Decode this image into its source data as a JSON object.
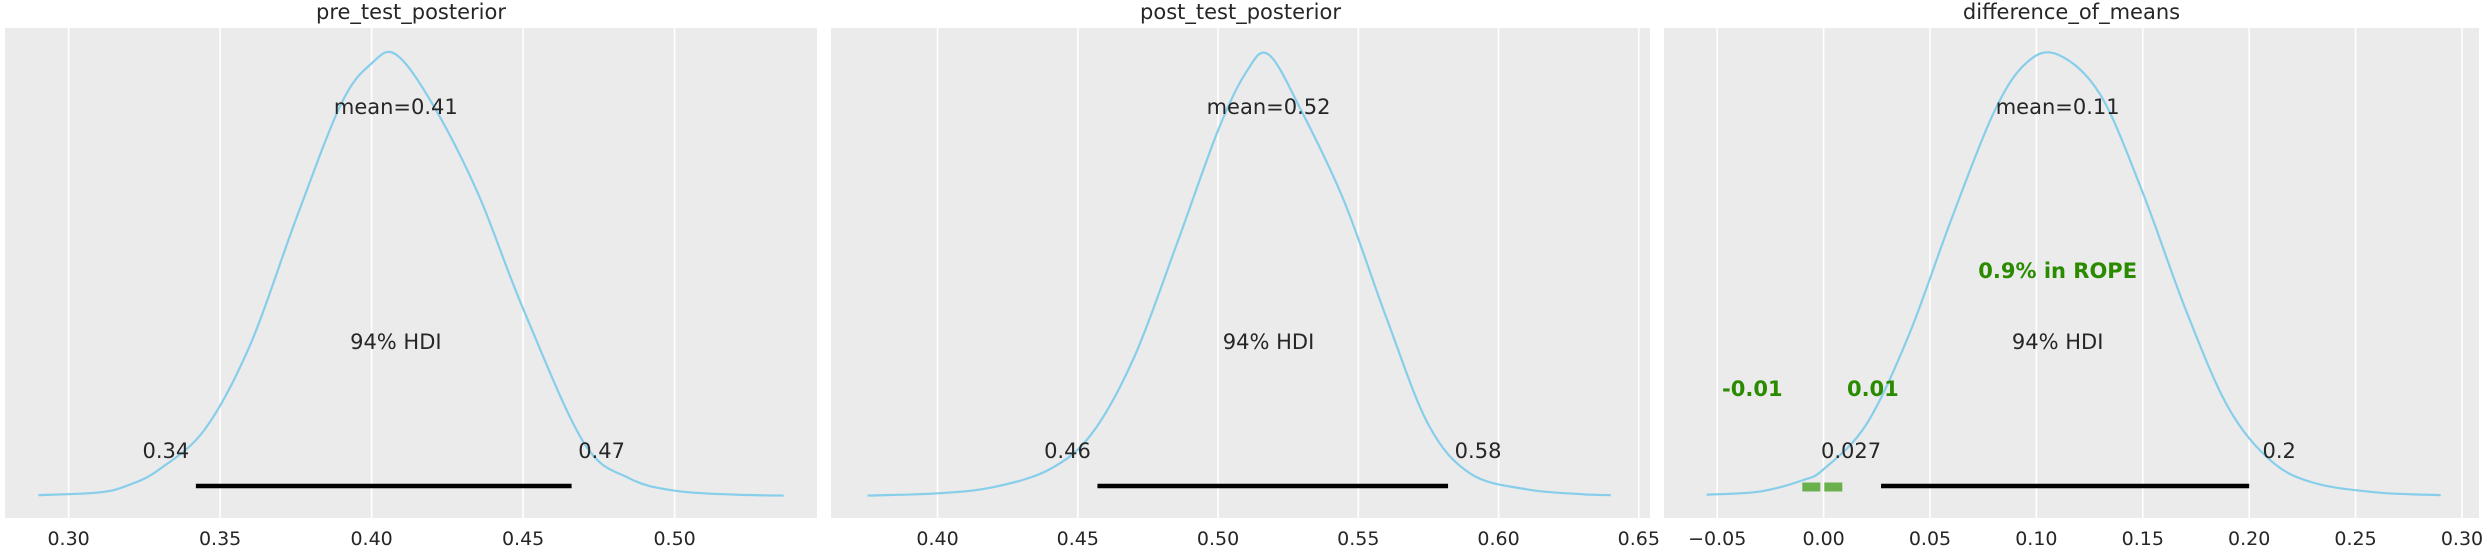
{
  "chart_data": [
    {
      "type": "area",
      "title": "pre_test_posterior",
      "xlabel": "",
      "ylabel": "",
      "xlim": [
        0.279,
        0.547
      ],
      "xticks": [
        0.3,
        0.35,
        0.4,
        0.45,
        0.5
      ],
      "xtick_labels": [
        "0.30",
        "0.35",
        "0.40",
        "0.45",
        "0.50"
      ],
      "grid": "vertical",
      "line_color": "#87ceeb",
      "mean_label": "mean=0.41",
      "hdi_label": "94% HDI",
      "hdi": [
        0.342,
        0.466
      ],
      "hdi_labels": [
        "0.34",
        "0.47"
      ],
      "density": {
        "x": [
          0.29,
          0.31,
          0.32,
          0.33,
          0.345,
          0.36,
          0.375,
          0.39,
          0.4,
          0.408,
          0.42,
          0.435,
          0.45,
          0.47,
          0.485,
          0.5,
          0.52,
          0.536
        ],
        "y": [
          0.002,
          0.008,
          0.025,
          0.06,
          0.15,
          0.34,
          0.62,
          0.88,
          0.97,
          0.99,
          0.88,
          0.68,
          0.42,
          0.12,
          0.04,
          0.012,
          0.003,
          0.001
        ]
      }
    },
    {
      "type": "area",
      "title": "post_test_posterior",
      "xlabel": "",
      "ylabel": "",
      "xlim": [
        0.362,
        0.654
      ],
      "xticks": [
        0.4,
        0.45,
        0.5,
        0.55,
        0.6,
        0.65
      ],
      "xtick_labels": [
        "0.40",
        "0.45",
        "0.50",
        "0.55",
        "0.60",
        "0.65"
      ],
      "grid": "vertical",
      "line_color": "#87ceeb",
      "mean_label": "mean=0.52",
      "hdi_label": "94% HDI",
      "hdi": [
        0.457,
        0.582
      ],
      "hdi_labels": [
        "0.46",
        "0.58"
      ],
      "density": {
        "x": [
          0.375,
          0.4,
          0.42,
          0.44,
          0.455,
          0.47,
          0.485,
          0.5,
          0.51,
          0.518,
          0.53,
          0.545,
          0.56,
          0.575,
          0.59,
          0.61,
          0.63,
          0.64
        ],
        "y": [
          0.001,
          0.006,
          0.02,
          0.06,
          0.14,
          0.31,
          0.56,
          0.82,
          0.95,
          0.99,
          0.86,
          0.66,
          0.4,
          0.16,
          0.05,
          0.015,
          0.004,
          0.002
        ]
      }
    },
    {
      "type": "area",
      "title": "difference_of_means",
      "xlabel": "",
      "ylabel": "",
      "xlim": [
        -0.075,
        0.308
      ],
      "xticks": [
        -0.05,
        0.0,
        0.05,
        0.1,
        0.15,
        0.2,
        0.25,
        0.3
      ],
      "xtick_labels": [
        "−0.05",
        "0.00",
        "0.05",
        "0.10",
        "0.15",
        "0.20",
        "0.25",
        "0.30"
      ],
      "grid": "vertical",
      "line_color": "#87ceeb",
      "mean_label": "mean=0.11",
      "hdi_label": "94% HDI",
      "hdi": [
        0.027,
        0.2
      ],
      "hdi_labels": [
        "0.027",
        "0.2"
      ],
      "rope": [
        -0.01,
        0.01
      ],
      "rope_labels": [
        "-0.01",
        "0.01"
      ],
      "rope_text": "0.9% in ROPE",
      "rope_color": "#2a8a00",
      "rope_bar_color": "#6ab04c",
      "density": {
        "x": [
          -0.055,
          -0.03,
          -0.01,
          0.0,
          0.02,
          0.04,
          0.06,
          0.08,
          0.095,
          0.11,
          0.13,
          0.15,
          0.17,
          0.19,
          0.21,
          0.23,
          0.26,
          0.29
        ],
        "y": [
          0.003,
          0.01,
          0.035,
          0.06,
          0.16,
          0.36,
          0.62,
          0.86,
          0.97,
          0.99,
          0.9,
          0.68,
          0.42,
          0.2,
          0.08,
          0.03,
          0.008,
          0.002
        ]
      }
    }
  ]
}
